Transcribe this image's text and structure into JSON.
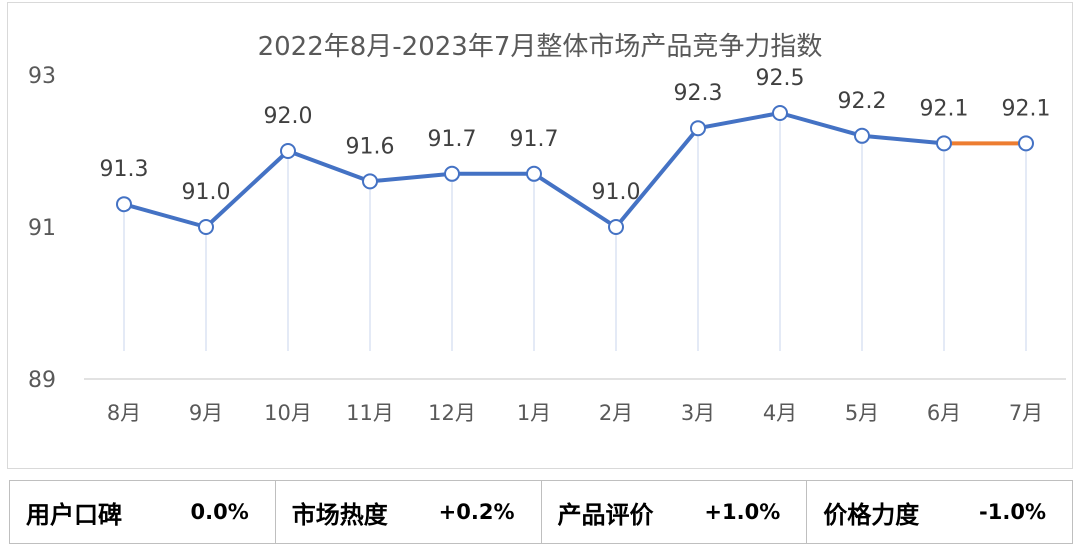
{
  "chart_data": {
    "type": "line",
    "title": "2022年8月-2023年7月整体市场产品竞争力指数",
    "categories": [
      "8月",
      "9月",
      "10月",
      "11月",
      "12月",
      "1月",
      "2月",
      "3月",
      "4月",
      "5月",
      "6月",
      "7月"
    ],
    "values": [
      91.3,
      91.0,
      92.0,
      91.6,
      91.7,
      91.7,
      91.0,
      92.3,
      92.5,
      92.2,
      92.1,
      92.1
    ],
    "data_labels": [
      "91.3",
      "91.0",
      "92.0",
      "91.6",
      "91.7",
      "91.7",
      "91.0",
      "92.3",
      "92.5",
      "92.2",
      "92.1",
      "92.1"
    ],
    "ylim": [
      89,
      93
    ],
    "yticks": [
      "89",
      "91",
      "93"
    ],
    "colors": {
      "main": "#4472c4",
      "last_segment": "#ed7d31",
      "drop_line": "#c9d6ee"
    },
    "grid": false,
    "legend": "none"
  },
  "footer": {
    "metrics": [
      {
        "label": "用户口碑",
        "value": "0.0%"
      },
      {
        "label": "市场热度",
        "value": "+0.2%"
      },
      {
        "label": "产品评价",
        "value": "+1.0%"
      },
      {
        "label": "价格力度",
        "value": "-1.0%"
      }
    ]
  }
}
